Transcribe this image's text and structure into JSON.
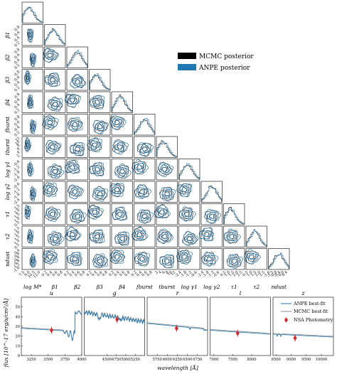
{
  "corner": {
    "params": [
      "log M*",
      "β1",
      "β2",
      "β3",
      "β4",
      "fburst",
      "tburst",
      "log γ1",
      "log γ2",
      "τ1",
      "τ2",
      "ndust"
    ],
    "xticks": [
      [
        "7.5",
        "9.0",
        "10.5",
        "12.0"
      ],
      [
        "0.2",
        "0.4",
        "0.6",
        "0.8"
      ],
      [
        "0.2",
        "0.4",
        "0.6",
        "0.8"
      ],
      [
        "0.2",
        "0.4",
        "0.6",
        "0.8"
      ],
      [
        "0.2",
        "0.4",
        "0.6",
        "0.8"
      ],
      [
        "0.2",
        "0.4",
        "0.6",
        "0.8"
      ],
      [
        "2",
        "4",
        "6",
        "8",
        "10",
        "12"
      ],
      [
        "-2.4",
        "-1.8",
        "-1.2",
        "-0.6"
      ],
      [
        "-2.4",
        "-1.8",
        "-1.2",
        "-0.6"
      ],
      [
        "0.5",
        "1.0",
        "1.5",
        "2.0",
        "2.5"
      ],
      [
        "0.5",
        "1.0",
        "1.5",
        "2.0",
        "2.5"
      ],
      [
        "-1.6",
        "-1.2",
        "-0.8",
        "-0.4",
        "0.0",
        "0.4"
      ]
    ],
    "legend": [
      {
        "label": "MCMC posterior",
        "color": "#000000"
      },
      {
        "label": "ANPE posterior",
        "color": "#1f77b4"
      }
    ]
  },
  "chart_data": {
    "type": "line",
    "ylabel": "flux [10^-17 erg/s/cm²/Å]",
    "xlabel": "wavelength [Å]",
    "bands": [
      {
        "name": "u",
        "xlim": [
          3100,
          4000
        ],
        "xticks": [
          "3250",
          "3500",
          "3750",
          "4000"
        ]
      },
      {
        "name": "g",
        "xlim": [
          3900,
          5500
        ],
        "xticks": [
          "4500",
          "4750",
          "5000",
          "5250"
        ]
      },
      {
        "name": "r",
        "xlim": [
          5500,
          7000
        ],
        "xticks": [
          "5750",
          "6000",
          "6250",
          "6500",
          "6750"
        ]
      },
      {
        "name": "i",
        "xlim": [
          6900,
          8500
        ],
        "xticks": [
          "7000",
          "7500",
          "8000"
        ]
      },
      {
        "name": "z",
        "xlim": [
          8400,
          10400
        ],
        "xticks": [
          "8500",
          "9000",
          "9500",
          "10000"
        ]
      }
    ],
    "ylim": [
      0,
      60
    ],
    "yticks": [
      "0",
      "10",
      "20",
      "30",
      "40",
      "50"
    ],
    "photometry": [
      {
        "band": "u",
        "x": 3550,
        "y": 26
      },
      {
        "band": "g",
        "x": 4770,
        "y": 37
      },
      {
        "band": "r",
        "x": 6230,
        "y": 28
      },
      {
        "band": "i",
        "x": 7630,
        "y": 23
      },
      {
        "band": "z",
        "x": 9130,
        "y": 18
      }
    ],
    "series": [
      {
        "name": "ANPE best-fit",
        "color": "#1f77b4"
      },
      {
        "name": "MCMC best-fit",
        "color": "#888888"
      },
      {
        "name": "NSA Photometry",
        "color": "#d62728"
      }
    ]
  }
}
